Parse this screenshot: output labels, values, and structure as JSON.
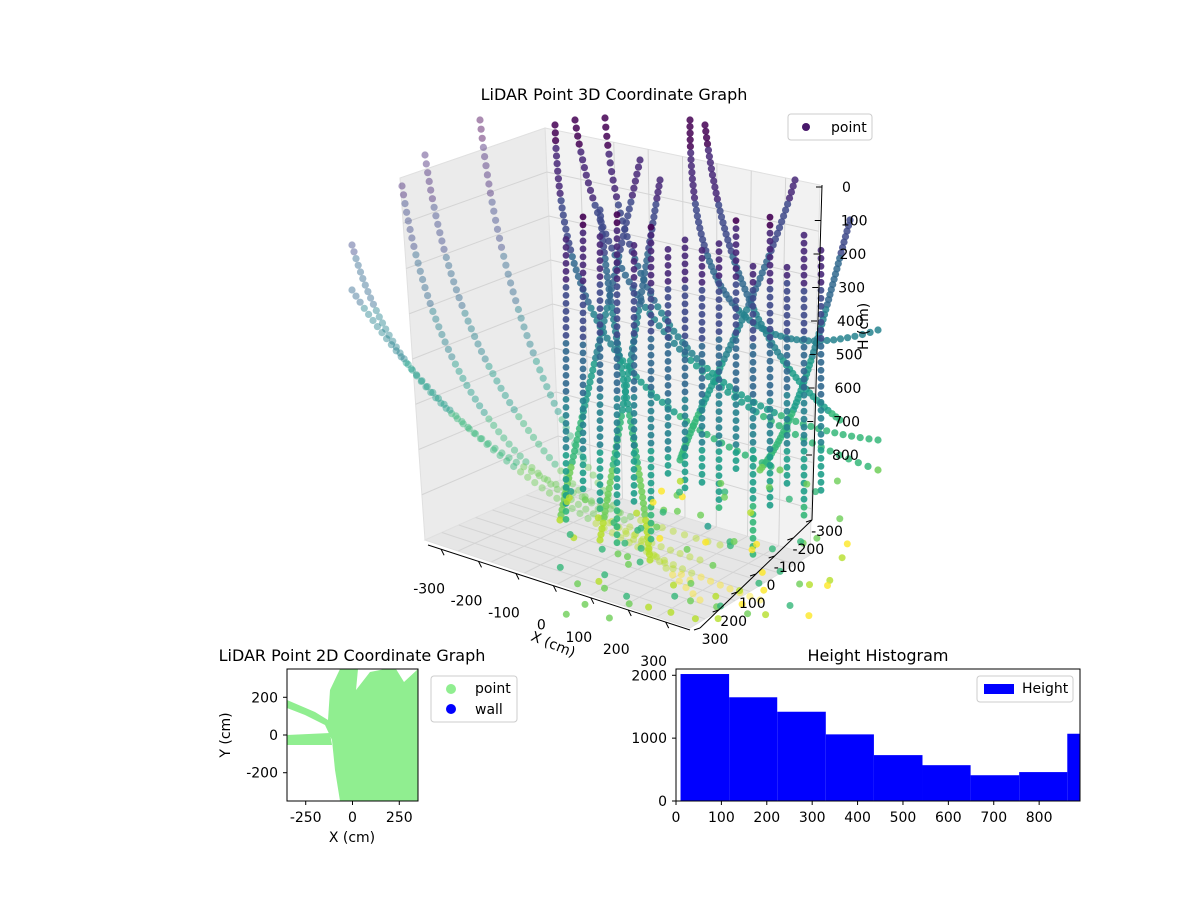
{
  "chart_data": [
    {
      "type": "scatter",
      "projection": "3d",
      "title": "LiDAR Point 3D Coordinate Graph",
      "xlabel": "X (cm)",
      "ylabel": "",
      "zlabel": "H (cm)",
      "x_ticks": [
        -300,
        -200,
        -100,
        0,
        100,
        200,
        300
      ],
      "y_ticks": [
        -300,
        -200,
        -100,
        0,
        100,
        200,
        300
      ],
      "z_ticks": [
        0,
        100,
        200,
        300,
        400,
        500,
        600,
        700,
        800
      ],
      "z_inverted": true,
      "colormap": "viridis",
      "legend": {
        "location": "top-right",
        "entries": [
          {
            "label": "point",
            "color": "#48186a"
          }
        ]
      },
      "grid": true
    },
    {
      "type": "scatter",
      "title": "LiDAR Point 2D Coordinate Graph",
      "xlabel": "X (cm)",
      "ylabel": "Y (cm)",
      "xlim": [
        -350,
        350
      ],
      "ylim": [
        -350,
        350
      ],
      "x_ticks": [
        -250,
        0,
        250
      ],
      "y_ticks": [
        -200,
        0,
        200
      ],
      "series": [
        {
          "name": "point",
          "color": "#90ee90"
        },
        {
          "name": "wall",
          "color": "#0000ff"
        }
      ],
      "legend": {
        "location": "outside-right"
      }
    },
    {
      "type": "bar",
      "subtype": "histogram",
      "title": "Height Histogram",
      "xlim": [
        0,
        890
      ],
      "ylim": [
        0,
        2100
      ],
      "x_ticks": [
        0,
        100,
        200,
        300,
        400,
        500,
        600,
        700,
        800
      ],
      "y_ticks": [
        0,
        1000,
        2000
      ],
      "bins": [
        [
          10,
          117,
          2020
        ],
        [
          117,
          223,
          1650
        ],
        [
          223,
          330,
          1420
        ],
        [
          330,
          436,
          1060
        ],
        [
          436,
          543,
          730
        ],
        [
          543,
          649,
          570
        ],
        [
          649,
          756,
          410
        ],
        [
          756,
          862,
          460
        ],
        [
          862,
          890,
          1070
        ]
      ],
      "color": "#0000ff",
      "legend": {
        "location": "top-right",
        "entries": [
          {
            "label": "Height",
            "color": "#0000ff"
          }
        ]
      }
    }
  ]
}
